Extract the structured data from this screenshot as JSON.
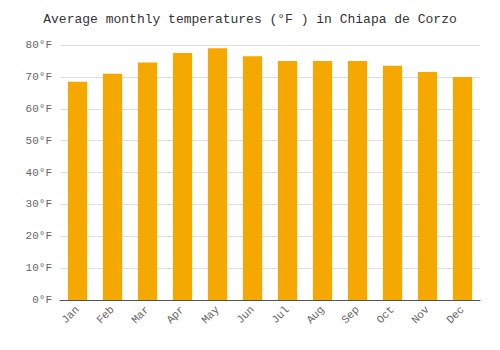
{
  "chart_data": {
    "type": "bar",
    "title": "Average monthly temperatures (°F ) in Chiapa de Corzo",
    "categories": [
      "Jan",
      "Feb",
      "Mar",
      "Apr",
      "May",
      "Jun",
      "Jul",
      "Aug",
      "Sep",
      "Oct",
      "Nov",
      "Dec"
    ],
    "values": [
      68.5,
      71.0,
      74.5,
      77.5,
      79.0,
      76.5,
      75.0,
      75.0,
      75.0,
      73.5,
      71.5,
      70.0
    ],
    "color": "#F5A800",
    "ylim": [
      0,
      80
    ],
    "yticks": [
      {
        "value": 0,
        "label": "0°F"
      },
      {
        "value": 10,
        "label": "10°F"
      },
      {
        "value": 20,
        "label": "20°F"
      },
      {
        "value": 30,
        "label": "30°F"
      },
      {
        "value": 40,
        "label": "40°F"
      },
      {
        "value": 50,
        "label": "50°F"
      },
      {
        "value": 60,
        "label": "60°F"
      },
      {
        "value": 70,
        "label": "70°F"
      },
      {
        "value": 80,
        "label": "80°F"
      }
    ],
    "grid": true
  }
}
